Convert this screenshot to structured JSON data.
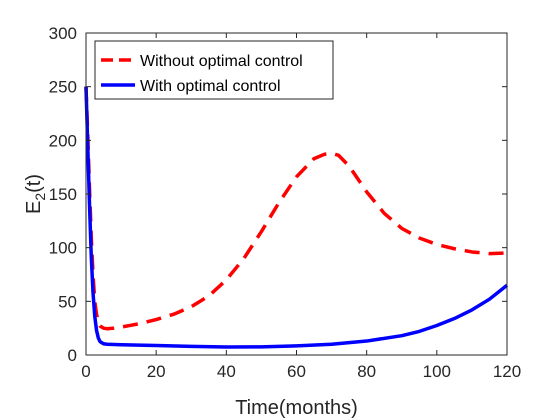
{
  "chart_data": {
    "type": "line",
    "xlabel": "Time(months)",
    "ylabel": "E",
    "ylabel_sub": "2",
    "ylabel_tail": "(t)",
    "xlim": [
      0,
      120
    ],
    "ylim": [
      0,
      300
    ],
    "xticks": [
      "0",
      "20",
      "40",
      "60",
      "80",
      "100",
      "120"
    ],
    "yticks": [
      "0",
      "50",
      "100",
      "150",
      "200",
      "250",
      "300"
    ],
    "grid": false,
    "legend_position": "top-left",
    "series": [
      {
        "name": "Without optimal control",
        "color": "#ff0000",
        "style": "dashed",
        "x": [
          0,
          0.5,
          1,
          1.5,
          2,
          2.5,
          3,
          3.5,
          4,
          5,
          6,
          8,
          10,
          15,
          20,
          25,
          30,
          35,
          40,
          45,
          50,
          55,
          60,
          65,
          68,
          70,
          72,
          75,
          80,
          85,
          90,
          95,
          100,
          105,
          110,
          115,
          120
        ],
        "y": [
          250,
          205,
          155,
          110,
          75,
          50,
          38,
          31,
          27,
          25,
          24.5,
          25,
          26,
          29,
          33,
          38,
          45,
          55,
          70,
          90,
          115,
          142,
          166,
          183,
          187,
          188,
          186,
          176,
          152,
          132,
          118,
          109,
          103,
          99,
          96,
          94.5,
          95
        ]
      },
      {
        "name": "With optimal control",
        "color": "#0000ff",
        "style": "solid",
        "x": [
          0,
          0.5,
          1,
          1.5,
          2,
          2.5,
          3,
          3.5,
          4,
          5,
          6,
          8,
          10,
          15,
          20,
          30,
          40,
          50,
          60,
          70,
          80,
          90,
          95,
          100,
          105,
          110,
          115,
          120
        ],
        "y": [
          250,
          195,
          140,
          92,
          58,
          36,
          23,
          16,
          12.5,
          10.5,
          10,
          9.8,
          9.6,
          9.2,
          8.8,
          8,
          7.5,
          7.6,
          8.5,
          10,
          13,
          18,
          22,
          27.5,
          34,
          42,
          52,
          65
        ]
      }
    ]
  }
}
